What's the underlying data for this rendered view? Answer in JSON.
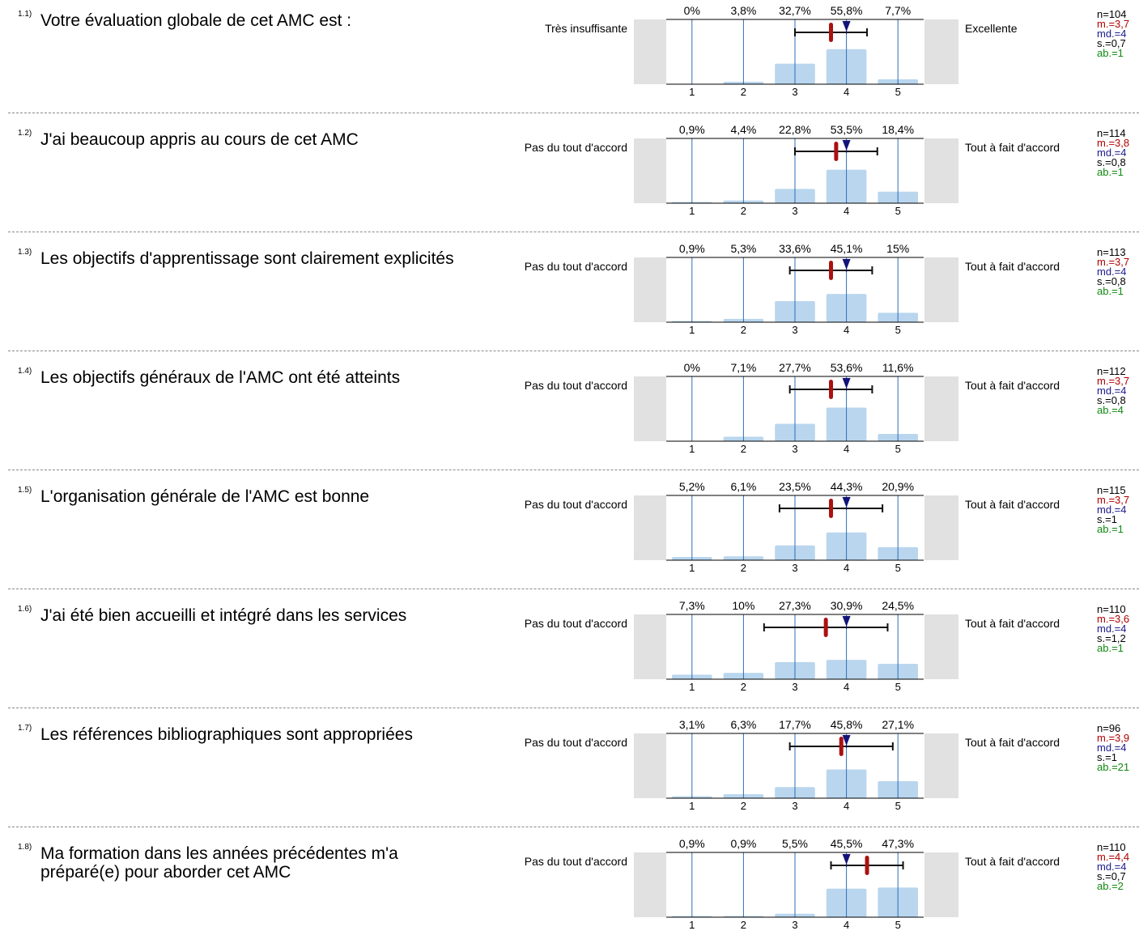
{
  "chart_data": {
    "type": "bar",
    "categories": [
      "1",
      "2",
      "3",
      "4",
      "5"
    ],
    "questions": [
      {
        "id": "1.1)",
        "text": "Votre évaluation globale de cet AMC est :",
        "left_label": "Très insuffisante",
        "right_label": "Excellente",
        "values": [
          0,
          3.8,
          32.7,
          55.8,
          7.7
        ],
        "pct_labels": [
          "0%",
          "3,8%",
          "32,7%",
          "55,8%",
          "7,7%"
        ],
        "mean": 3.7,
        "median": 4,
        "sd": 0.7,
        "stats": {
          "n": "n=104",
          "m": "m.=3,7",
          "md": "md.=4",
          "s": "s.=0,7",
          "ab": "ab.=1"
        }
      },
      {
        "id": "1.2)",
        "text": "J'ai beaucoup appris au cours de cet AMC",
        "left_label": "Pas du tout d'accord",
        "right_label": "Tout à fait d'accord",
        "values": [
          0.9,
          4.4,
          22.8,
          53.5,
          18.4
        ],
        "pct_labels": [
          "0,9%",
          "4,4%",
          "22,8%",
          "53,5%",
          "18,4%"
        ],
        "mean": 3.8,
        "median": 4,
        "sd": 0.8,
        "stats": {
          "n": "n=114",
          "m": "m.=3,8",
          "md": "md.=4",
          "s": "s.=0,8",
          "ab": "ab.=1"
        }
      },
      {
        "id": "1.3)",
        "text": "Les objectifs d'apprentissage sont  clairement explicités",
        "left_label": "Pas du tout d'accord",
        "right_label": "Tout à fait d'accord",
        "values": [
          0.9,
          5.3,
          33.6,
          45.1,
          15
        ],
        "pct_labels": [
          "0,9%",
          "5,3%",
          "33,6%",
          "45,1%",
          "15%"
        ],
        "mean": 3.7,
        "median": 4,
        "sd": 0.8,
        "stats": {
          "n": "n=113",
          "m": "m.=3,7",
          "md": "md.=4",
          "s": "s.=0,8",
          "ab": "ab.=1"
        }
      },
      {
        "id": "1.4)",
        "text": "Les objectifs généraux de l'AMC ont été atteints",
        "left_label": "Pas du tout d'accord",
        "right_label": "Tout à fait d'accord",
        "values": [
          0,
          7.1,
          27.7,
          53.6,
          11.6
        ],
        "pct_labels": [
          "0%",
          "7,1%",
          "27,7%",
          "53,6%",
          "11,6%"
        ],
        "mean": 3.7,
        "median": 4,
        "sd": 0.8,
        "stats": {
          "n": "n=112",
          "m": "m.=3,7",
          "md": "md.=4",
          "s": "s.=0,8",
          "ab": "ab.=4"
        }
      },
      {
        "id": "1.5)",
        "text": "L'organisation générale de l'AMC est bonne",
        "left_label": "Pas du tout d'accord",
        "right_label": "Tout à fait d'accord",
        "values": [
          5.2,
          6.1,
          23.5,
          44.3,
          20.9
        ],
        "pct_labels": [
          "5,2%",
          "6,1%",
          "23,5%",
          "44,3%",
          "20,9%"
        ],
        "mean": 3.7,
        "median": 4,
        "sd": 1,
        "stats": {
          "n": "n=115",
          "m": "m.=3,7",
          "md": "md.=4",
          "s": "s.=1",
          "ab": "ab.=1"
        }
      },
      {
        "id": "1.6)",
        "text": "J'ai été bien accueilli et intégré dans les services",
        "left_label": "Pas du tout d'accord",
        "right_label": "Tout à fait d'accord",
        "values": [
          7.3,
          10,
          27.3,
          30.9,
          24.5
        ],
        "pct_labels": [
          "7,3%",
          "10%",
          "27,3%",
          "30,9%",
          "24,5%"
        ],
        "mean": 3.6,
        "median": 4,
        "sd": 1.2,
        "stats": {
          "n": "n=110",
          "m": "m.=3,6",
          "md": "md.=4",
          "s": "s.=1,2",
          "ab": "ab.=1"
        }
      },
      {
        "id": "1.7)",
        "text": "Les références bibliographiques sont appropriées",
        "left_label": "Pas du tout d'accord",
        "right_label": "Tout à fait d'accord",
        "values": [
          3.1,
          6.3,
          17.7,
          45.8,
          27.1
        ],
        "pct_labels": [
          "3,1%",
          "6,3%",
          "17,7%",
          "45,8%",
          "27,1%"
        ],
        "mean": 3.9,
        "median": 4,
        "sd": 1,
        "stats": {
          "n": "n=96",
          "m": "m.=3,9",
          "md": "md.=4",
          "s": "s.=1",
          "ab": "ab.=21"
        }
      },
      {
        "id": "1.8)",
        "text": "Ma formation dans les années précédentes m'a préparé(e) pour aborder cet AMC",
        "left_label": "Pas du tout d'accord",
        "right_label": "Tout à fait d'accord",
        "values": [
          0.9,
          0.9,
          5.5,
          45.5,
          47.3
        ],
        "pct_labels": [
          "0,9%",
          "0,9%",
          "5,5%",
          "45,5%",
          "47,3%"
        ],
        "mean": 4.4,
        "median": 4,
        "sd": 0.7,
        "stats": {
          "n": "n=110",
          "m": "m.=4,4",
          "md": "md.=4",
          "s": "s.=0,7",
          "ab": "ab.=2"
        }
      }
    ],
    "colors": {
      "bar": "#b9d6ee",
      "scale_line": "#2f6fb5",
      "mean": "#aa1111",
      "median": "#13137a",
      "side_panel": "#e1e1e1"
    }
  }
}
